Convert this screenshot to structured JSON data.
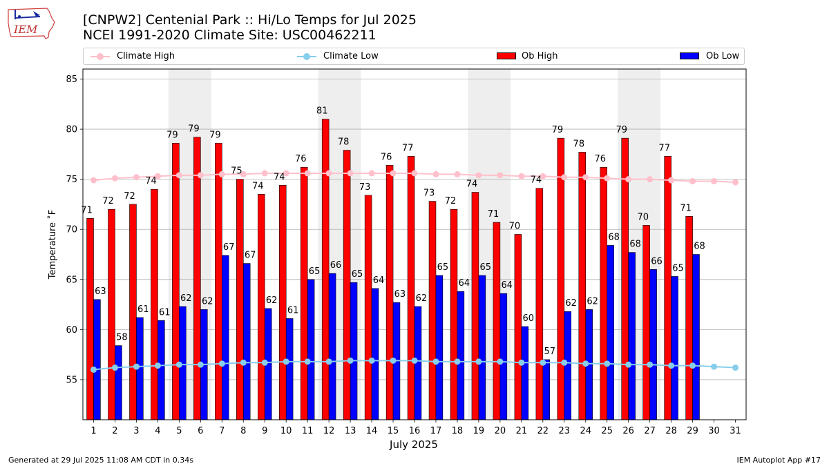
{
  "header": {
    "logo_text": "IEM",
    "title_line1": "[CNPW2] Centenial Park :: Hi/Lo Temps for Jul 2025",
    "title_line2": "NCEI 1991-2020 Climate Site: USC00462211"
  },
  "legend": {
    "placement": "top",
    "items": [
      {
        "label": "Climate High",
        "kind": "line-marker",
        "color": "#ffc0cb"
      },
      {
        "label": "Climate Low",
        "kind": "line-marker",
        "color": "#87ceeb"
      },
      {
        "label": "Ob High",
        "kind": "bar",
        "color": "#ff0000"
      },
      {
        "label": "Ob Low",
        "kind": "bar",
        "color": "#0000ff"
      }
    ]
  },
  "colors": {
    "ob_high": "#ff0000",
    "ob_low": "#0000ff",
    "climate_high": "#ffc0cb",
    "climate_low": "#87ceeb",
    "weekend_band": "#eeeeee",
    "grid": "#b0b0b0"
  },
  "chart_data": {
    "type": "bar",
    "xlabel": "July 2025",
    "ylabel": "Temperature ˚F",
    "ylim": [
      51,
      86
    ],
    "yticks": [
      55,
      60,
      65,
      70,
      75,
      80,
      85
    ],
    "grid": "horizontal",
    "categories": [
      "1",
      "2",
      "3",
      "4",
      "5",
      "6",
      "7",
      "8",
      "9",
      "10",
      "11",
      "12",
      "13",
      "14",
      "15",
      "16",
      "17",
      "18",
      "19",
      "20",
      "21",
      "22",
      "23",
      "24",
      "25",
      "26",
      "27",
      "28",
      "29",
      "30",
      "31"
    ],
    "weekend_shading": [
      [
        "5",
        "6"
      ],
      [
        "12",
        "13"
      ],
      [
        "19",
        "20"
      ],
      [
        "26",
        "27"
      ]
    ],
    "series": [
      {
        "name": "Ob High",
        "kind": "bar",
        "color": "#ff0000",
        "values": [
          71.1,
          72.0,
          72.5,
          74.0,
          78.6,
          79.2,
          78.6,
          75.0,
          73.5,
          74.4,
          76.2,
          81.0,
          77.9,
          73.4,
          76.4,
          77.3,
          72.8,
          72.0,
          73.7,
          70.7,
          69.5,
          74.1,
          79.1,
          77.7,
          76.2,
          79.1,
          70.4,
          77.3,
          71.3,
          null,
          null
        ],
        "labels": [
          "71",
          "72",
          "72",
          "74",
          "79",
          "79",
          "79",
          "75",
          "74",
          "74",
          "76",
          "81",
          "78",
          "73",
          "76",
          "77",
          "73",
          "72",
          "74",
          "71",
          "70",
          "74",
          "79",
          "78",
          "76",
          "79",
          "70",
          "77",
          "71",
          null,
          null
        ]
      },
      {
        "name": "Ob Low",
        "kind": "bar",
        "color": "#0000ff",
        "values": [
          63.0,
          58.4,
          61.2,
          60.9,
          62.3,
          62.0,
          67.4,
          66.6,
          62.1,
          61.1,
          65.0,
          65.6,
          64.7,
          64.1,
          62.7,
          62.3,
          65.4,
          63.8,
          65.4,
          63.6,
          60.3,
          57.0,
          61.8,
          62.0,
          68.4,
          67.7,
          66.0,
          65.3,
          67.5,
          null,
          null
        ],
        "labels": [
          "63",
          "58",
          "61",
          "61",
          "62",
          "62",
          "67",
          "67",
          "62",
          "61",
          "65",
          "66",
          "65",
          "64",
          "63",
          "62",
          "65",
          "64",
          "65",
          "64",
          "60",
          "57",
          "62",
          "62",
          "68",
          "68",
          "66",
          "65",
          "68",
          null,
          null
        ]
      },
      {
        "name": "Climate High",
        "kind": "line",
        "color": "#ffc0cb",
        "values": [
          74.9,
          75.1,
          75.2,
          75.3,
          75.4,
          75.4,
          75.5,
          75.5,
          75.6,
          75.6,
          75.6,
          75.6,
          75.6,
          75.6,
          75.6,
          75.6,
          75.5,
          75.5,
          75.4,
          75.4,
          75.3,
          75.3,
          75.2,
          75.2,
          75.1,
          75.0,
          75.0,
          74.9,
          74.8,
          74.8,
          74.7
        ]
      },
      {
        "name": "Climate Low",
        "kind": "line",
        "color": "#87ceeb",
        "values": [
          56.0,
          56.2,
          56.3,
          56.4,
          56.5,
          56.5,
          56.6,
          56.7,
          56.7,
          56.8,
          56.8,
          56.8,
          56.9,
          56.9,
          56.9,
          56.9,
          56.8,
          56.8,
          56.8,
          56.8,
          56.7,
          56.7,
          56.7,
          56.6,
          56.6,
          56.5,
          56.5,
          56.4,
          56.4,
          56.3,
          56.2
        ]
      }
    ]
  },
  "footer": {
    "left": "Generated at 29 Jul 2025 11:08 AM CDT in 0.34s",
    "right": "IEM Autoplot App #17"
  }
}
